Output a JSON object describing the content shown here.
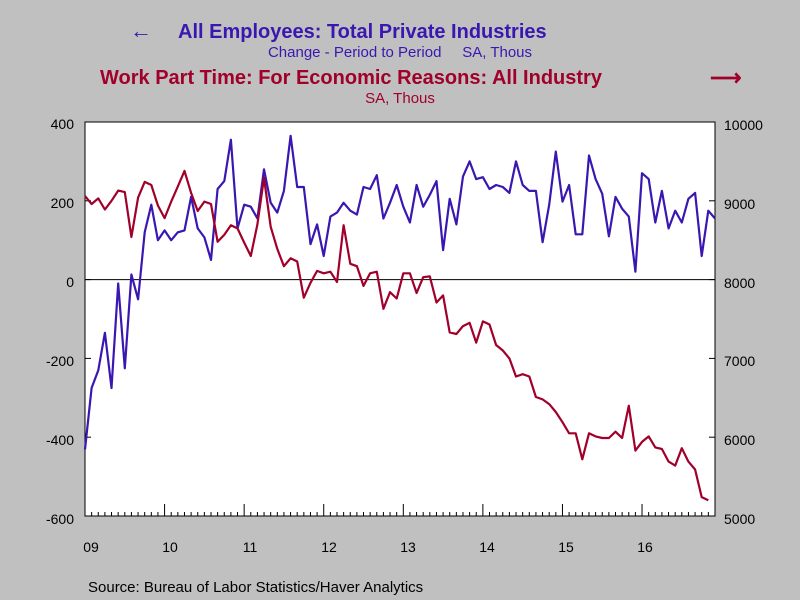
{
  "legend": {
    "series1_arrow": "←",
    "series1_title": "All Employees: Total Private Industries",
    "series1_subtitle": "Change - Period to Period     SA, Thous",
    "series2_title": "Work Part Time: For Economic Reasons: All Industry",
    "series2_arrow": "⟶",
    "series2_subtitle": "SA, Thous"
  },
  "source": "Source:  Bureau of Labor Statistics/Haver Analytics",
  "colors": {
    "series1": "#3a17b0",
    "series2": "#a0002a",
    "plot_bg": "#ffffff",
    "page_bg": "#c0c0c0"
  },
  "chart_data": {
    "type": "line",
    "x_ticks": [
      "09",
      "10",
      "11",
      "12",
      "13",
      "14",
      "15",
      "16"
    ],
    "x_range": [
      2009.0,
      2016.917
    ],
    "left_axis": {
      "ticks": [
        "400",
        "200",
        "0",
        "-200",
        "-400",
        "-600"
      ],
      "ylim": [
        -600,
        400
      ]
    },
    "right_axis": {
      "ticks": [
        "10000",
        "9000",
        "8000",
        "7000",
        "6000",
        "5000"
      ],
      "ylim": [
        5000,
        10000
      ]
    },
    "zero_line": 0,
    "series": [
      {
        "axis": "left",
        "start": "2009-01",
        "frequency": "monthly",
        "values": [
          -431,
          -275,
          -230,
          -135,
          -275,
          -10,
          -225,
          13,
          -50,
          120,
          190,
          100,
          125,
          100,
          120,
          125,
          210,
          130,
          107,
          50,
          230,
          250,
          355,
          130,
          190,
          185,
          155,
          280,
          195,
          170,
          225,
          365,
          235,
          235,
          90,
          140,
          60,
          160,
          170,
          195,
          175,
          165,
          235,
          230,
          265,
          155,
          195,
          240,
          185,
          145,
          240,
          185,
          215,
          250,
          75,
          205,
          140,
          262,
          300,
          255,
          260,
          230,
          240,
          235,
          220,
          300,
          240,
          225,
          225,
          95,
          190,
          325,
          198,
          240,
          115,
          115,
          315,
          255,
          218,
          110,
          210,
          180,
          160,
          20,
          270,
          255,
          145,
          225,
          130,
          175,
          145,
          205,
          220,
          60,
          175,
          155
        ]
      },
      {
        "axis": "right",
        "start": "2009-01",
        "frequency": "monthly",
        "values": [
          9060,
          8960,
          9030,
          8890,
          9000,
          9130,
          9110,
          8540,
          9040,
          9240,
          9200,
          8940,
          8780,
          8990,
          9180,
          9380,
          9100,
          8870,
          8990,
          8960,
          8480,
          8570,
          8690,
          8650,
          8470,
          8300,
          8700,
          9290,
          8670,
          8390,
          8170,
          8270,
          8230,
          7770,
          7960,
          8110,
          8080,
          8100,
          7970,
          8690,
          8200,
          8170,
          7920,
          8080,
          8100,
          7630,
          7840,
          7760,
          8080,
          8080,
          7830,
          8030,
          8040,
          7710,
          7800,
          7330,
          7310,
          7410,
          7450,
          7200,
          7470,
          7430,
          7170,
          7100,
          7000,
          6770,
          6800,
          6770,
          6510,
          6480,
          6420,
          6320,
          6190,
          6050,
          6050,
          5720,
          6050,
          6010,
          5990,
          5990,
          6070,
          5990,
          6400,
          5830,
          5940,
          6010,
          5870,
          5850,
          5690,
          5640,
          5860,
          5690,
          5590,
          5240,
          5200
        ]
      }
    ]
  }
}
